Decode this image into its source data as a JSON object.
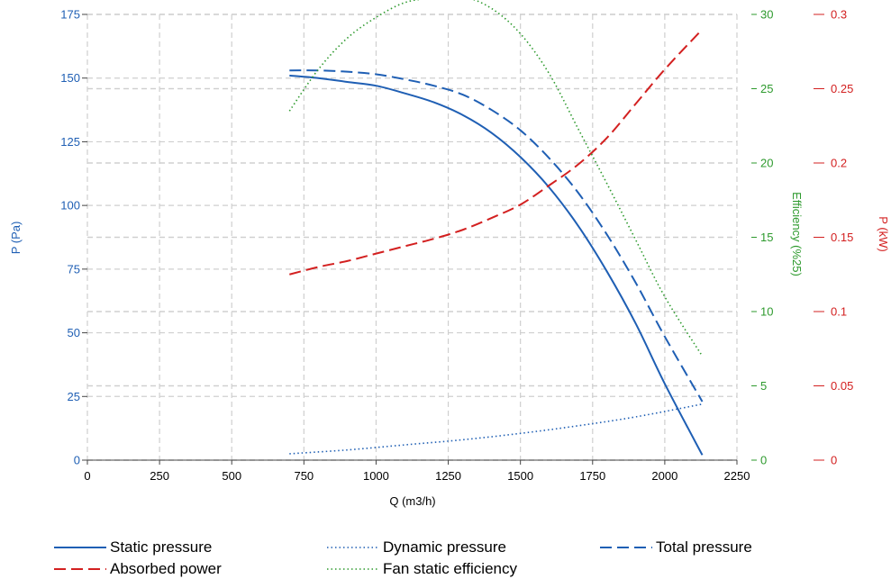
{
  "chart_data": {
    "type": "line",
    "xlabel": "Q (m3/h)",
    "x_ticks": [
      "0",
      "250",
      "500",
      "750",
      "1000",
      "1250",
      "1500",
      "1750",
      "2000",
      "2250"
    ],
    "xlim": [
      0,
      2250
    ],
    "axes": {
      "left": {
        "label": "P (Pa)",
        "color": "#1f5fb4",
        "lim": [
          0,
          175
        ],
        "ticks": [
          "0",
          "25",
          "50",
          "75",
          "100",
          "125",
          "150",
          "175"
        ]
      },
      "eff": {
        "label": "Efficiency (%25)",
        "color": "#2e9a2e",
        "lim": [
          0,
          30
        ],
        "ticks": [
          "0",
          "5",
          "10",
          "15",
          "20",
          "25",
          "30"
        ]
      },
      "power": {
        "label": "P (kW)",
        "color": "#d32020",
        "lim": [
          0,
          0.3
        ],
        "ticks": [
          "0",
          "0.05",
          "0.1",
          "0.15",
          "0.2",
          "0.25",
          "0.3"
        ]
      }
    },
    "grid": true,
    "series": [
      {
        "name": "Static pressure",
        "axis": "left",
        "color": "#1f5fb4",
        "style": "solid",
        "x": [
          700,
          800,
          900,
          1000,
          1100,
          1200,
          1300,
          1400,
          1500,
          1600,
          1700,
          1800,
          1900,
          2000,
          2130
        ],
        "y": [
          151,
          150,
          148.5,
          147,
          144,
          140.5,
          135.5,
          128.5,
          119,
          107,
          92,
          74,
          53.5,
          30,
          2
        ]
      },
      {
        "name": "Dynamic pressure",
        "axis": "left",
        "color": "#1f5fb4",
        "style": "dotted",
        "x": [
          700,
          900,
          1100,
          1300,
          1500,
          1700,
          1900,
          2130
        ],
        "y": [
          2.5,
          4,
          6,
          8,
          10.5,
          13.5,
          17,
          22
        ]
      },
      {
        "name": "Total pressure",
        "axis": "left",
        "color": "#1f5fb4",
        "style": "dashed",
        "x": [
          700,
          800,
          900,
          1000,
          1100,
          1200,
          1300,
          1400,
          1500,
          1600,
          1700,
          1800,
          1900,
          2000,
          2130
        ],
        "y": [
          153,
          153,
          152.5,
          151.5,
          149.5,
          147,
          143.5,
          137.5,
          129.5,
          118.5,
          105,
          88.5,
          69.5,
          48.5,
          23
        ]
      },
      {
        "name": "Absorbed power",
        "axis": "power",
        "color": "#d32020",
        "style": "dashed",
        "x": [
          700,
          800,
          900,
          1000,
          1100,
          1200,
          1300,
          1400,
          1500,
          1600,
          1700,
          1800,
          1900,
          2000,
          2130
        ],
        "y": [
          0.125,
          0.13,
          0.134,
          0.139,
          0.144,
          0.149,
          0.155,
          0.163,
          0.172,
          0.185,
          0.199,
          0.217,
          0.24,
          0.263,
          0.29
        ]
      },
      {
        "name": "Fan static efficiency",
        "axis": "eff",
        "color": "#2e9a2e",
        "style": "dotted",
        "x": [
          700,
          800,
          900,
          1000,
          1100,
          1200,
          1300,
          1400,
          1500,
          1600,
          1700,
          1800,
          1900,
          2000,
          2130
        ],
        "y": [
          23.5,
          26.3,
          28.4,
          29.8,
          30.8,
          31.1,
          31.2,
          30.4,
          28.7,
          26,
          22.3,
          18.6,
          14.8,
          11,
          7
        ]
      }
    ],
    "legend": {
      "position": "bottom"
    }
  }
}
